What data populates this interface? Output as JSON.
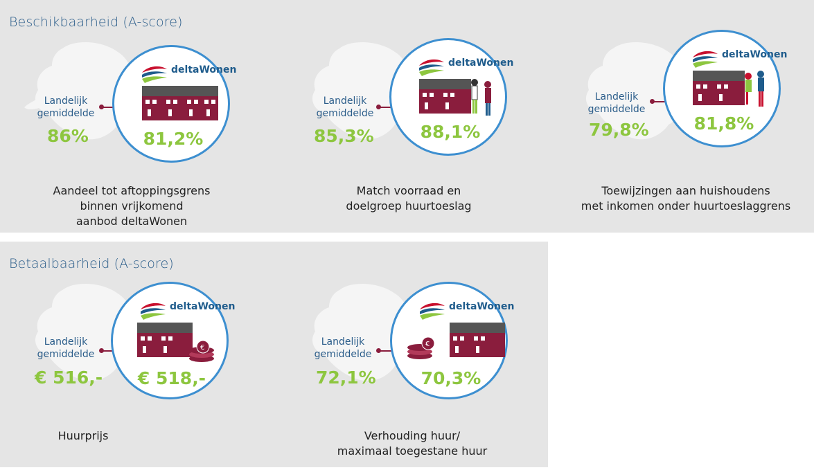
{
  "sections": [
    {
      "title": "Beschikbaarheid (A-score)",
      "cards": [
        {
          "national_label": "Landelijk gemiddelde",
          "national_value": "86%",
          "logo_text": "deltaWonen",
          "score": "81,2%",
          "caption": [
            "Aandeel tot aftoppingsgrens",
            "binnen vrijkomend",
            "aanbod deltaWonen"
          ]
        },
        {
          "national_label": "Landelijk gemiddelde",
          "national_value": "85,3%",
          "logo_text": "deltaWonen",
          "score": "88,1%",
          "caption": [
            "Match voorraad en",
            "doelgroep huurtoeslag"
          ]
        },
        {
          "national_label": "Landelijk gemiddelde",
          "national_value": "79,8%",
          "logo_text": "deltaWonen",
          "score": "81,8%",
          "caption": [
            "Toewijzingen aan huishoudens",
            "met inkomen onder huurtoeslaggrens"
          ]
        }
      ]
    },
    {
      "title": "Betaalbaarheid (A-score)",
      "cards": [
        {
          "national_label": "Landelijk gemiddelde",
          "national_value": "€ 516,-",
          "logo_text": "deltaWonen",
          "score": "€ 518,-",
          "caption": [
            "Huurprijs"
          ]
        },
        {
          "national_label": "Landelijk gemiddelde",
          "national_value": "72,1%",
          "logo_text": "deltaWonen",
          "score": "70,3%",
          "caption": [
            "Verhouding huur/",
            "maximaal toegestane huur"
          ]
        }
      ]
    }
  ],
  "colors": {
    "panel": "#e5e5e5",
    "title": "#2b5d8a",
    "green": "#8dc63f",
    "circle_border": "#3d8fd0",
    "house": "#8a1d3d",
    "logo_red": "#c8102e",
    "logo_blue": "#1f5c8c",
    "logo_green": "#8dc63f"
  }
}
